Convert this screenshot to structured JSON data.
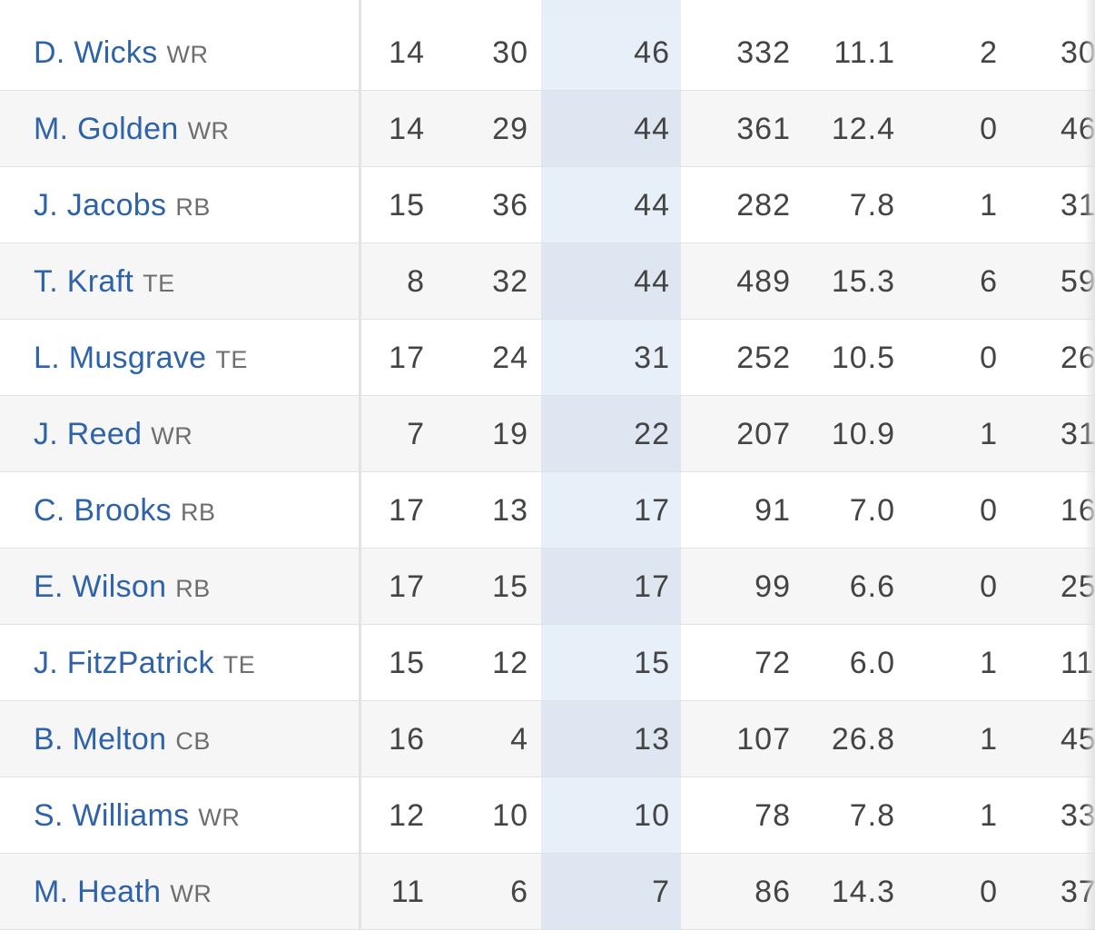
{
  "players": [
    {
      "name": "D. Wicks",
      "pos": "WR",
      "gp": "14",
      "tgt": "30",
      "rec": "46",
      "yds": "332",
      "avg": "11.1",
      "td": "2",
      "lng": "30"
    },
    {
      "name": "M. Golden",
      "pos": "WR",
      "gp": "14",
      "tgt": "29",
      "rec": "44",
      "yds": "361",
      "avg": "12.4",
      "td": "0",
      "lng": "46"
    },
    {
      "name": "J. Jacobs",
      "pos": "RB",
      "gp": "15",
      "tgt": "36",
      "rec": "44",
      "yds": "282",
      "avg": "7.8",
      "td": "1",
      "lng": "31"
    },
    {
      "name": "T. Kraft",
      "pos": "TE",
      "gp": "8",
      "tgt": "32",
      "rec": "44",
      "yds": "489",
      "avg": "15.3",
      "td": "6",
      "lng": "59"
    },
    {
      "name": "L. Musgrave",
      "pos": "TE",
      "gp": "17",
      "tgt": "24",
      "rec": "31",
      "yds": "252",
      "avg": "10.5",
      "td": "0",
      "lng": "26"
    },
    {
      "name": "J. Reed",
      "pos": "WR",
      "gp": "7",
      "tgt": "19",
      "rec": "22",
      "yds": "207",
      "avg": "10.9",
      "td": "1",
      "lng": "31"
    },
    {
      "name": "C. Brooks",
      "pos": "RB",
      "gp": "17",
      "tgt": "13",
      "rec": "17",
      "yds": "91",
      "avg": "7.0",
      "td": "0",
      "lng": "16"
    },
    {
      "name": "E. Wilson",
      "pos": "RB",
      "gp": "17",
      "tgt": "15",
      "rec": "17",
      "yds": "99",
      "avg": "6.6",
      "td": "0",
      "lng": "25"
    },
    {
      "name": "J. FitzPatrick",
      "pos": "TE",
      "gp": "15",
      "tgt": "12",
      "rec": "15",
      "yds": "72",
      "avg": "6.0",
      "td": "1",
      "lng": "11"
    },
    {
      "name": "B. Melton",
      "pos": "CB",
      "gp": "16",
      "tgt": "4",
      "rec": "13",
      "yds": "107",
      "avg": "26.8",
      "td": "1",
      "lng": "45"
    },
    {
      "name": "S. Williams",
      "pos": "WR",
      "gp": "12",
      "tgt": "10",
      "rec": "10",
      "yds": "78",
      "avg": "7.8",
      "td": "1",
      "lng": "33"
    },
    {
      "name": "M. Heath",
      "pos": "WR",
      "gp": "11",
      "tgt": "6",
      "rec": "7",
      "yds": "86",
      "avg": "14.3",
      "td": "0",
      "lng": "37"
    }
  ],
  "colors": {
    "player_link": "#2e63a9",
    "highlight_column": "#e7eff9"
  }
}
